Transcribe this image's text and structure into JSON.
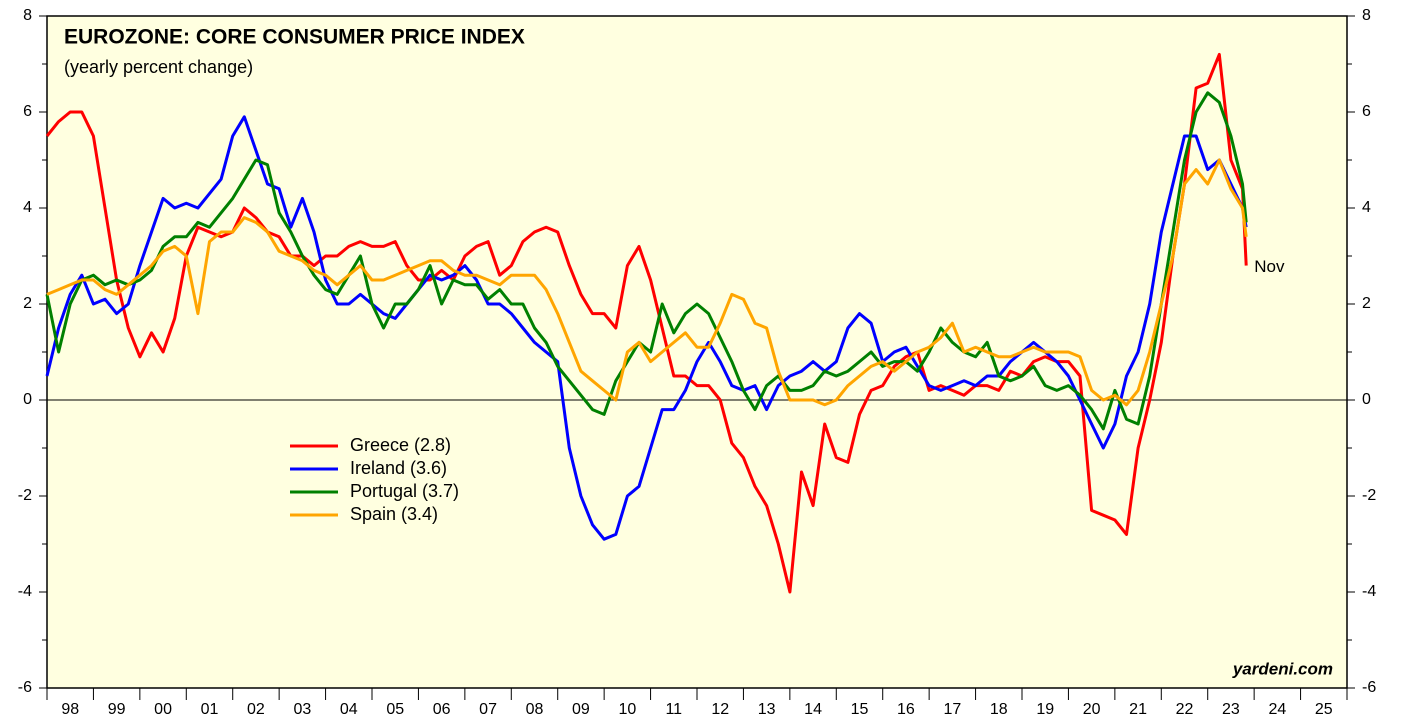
{
  "chart_data": {
    "type": "line",
    "title": "EUROZONE: CORE CONSUMER PRICE INDEX",
    "subtitle": "(yearly percent change)",
    "source": "yardeni.com",
    "annotation": {
      "text": "Nov",
      "color": "#ff0000"
    },
    "xlim": [
      1998,
      2026
    ],
    "xticks": [
      1998,
      1999,
      2000,
      2001,
      2002,
      2003,
      2004,
      2005,
      2006,
      2007,
      2008,
      2009,
      2010,
      2011,
      2012,
      2013,
      2014,
      2015,
      2016,
      2017,
      2018,
      2019,
      2020,
      2021,
      2022,
      2023,
      2024,
      2025,
      2026
    ],
    "xtick_labels": [
      {
        "value": 1998.5,
        "label": "98"
      },
      {
        "value": 1999.5,
        "label": "99"
      },
      {
        "value": 2000.5,
        "label": "00"
      },
      {
        "value": 2001.5,
        "label": "01"
      },
      {
        "value": 2002.5,
        "label": "02"
      },
      {
        "value": 2003.5,
        "label": "03"
      },
      {
        "value": 2004.5,
        "label": "04"
      },
      {
        "value": 2005.5,
        "label": "05"
      },
      {
        "value": 2006.5,
        "label": "06"
      },
      {
        "value": 2007.5,
        "label": "07"
      },
      {
        "value": 2008.5,
        "label": "08"
      },
      {
        "value": 2009.5,
        "label": "09"
      },
      {
        "value": 2010.5,
        "label": "10"
      },
      {
        "value": 2011.5,
        "label": "11"
      },
      {
        "value": 2012.5,
        "label": "12"
      },
      {
        "value": 2013.5,
        "label": "13"
      },
      {
        "value": 2014.5,
        "label": "14"
      },
      {
        "value": 2015.5,
        "label": "15"
      },
      {
        "value": 2016.5,
        "label": "16"
      },
      {
        "value": 2017.5,
        "label": "17"
      },
      {
        "value": 2018.5,
        "label": "18"
      },
      {
        "value": 2019.5,
        "label": "19"
      },
      {
        "value": 2020.5,
        "label": "20"
      },
      {
        "value": 2021.5,
        "label": "21"
      },
      {
        "value": 2022.5,
        "label": "22"
      },
      {
        "value": 2023.5,
        "label": "23"
      },
      {
        "value": 2024.5,
        "label": "24"
      },
      {
        "value": 2025.5,
        "label": "25"
      }
    ],
    "ylim": [
      -6,
      8
    ],
    "yticks": [
      -6,
      -4,
      -2,
      0,
      2,
      4,
      6,
      8
    ],
    "yticks_minor": [
      -5,
      -3,
      -1,
      1,
      3,
      5,
      7
    ],
    "y2lim": [
      -6,
      8
    ],
    "y2ticks": [
      -6,
      -4,
      -2,
      0,
      2,
      4,
      6,
      8
    ],
    "zero_line": true,
    "legend_position": "lower-left",
    "x": [
      1998,
      1998.25,
      1998.5,
      1998.75,
      1999,
      1999.25,
      1999.5,
      1999.75,
      2000,
      2000.25,
      2000.5,
      2000.75,
      2001,
      2001.25,
      2001.5,
      2001.75,
      2002,
      2002.25,
      2002.5,
      2002.75,
      2003,
      2003.25,
      2003.5,
      2003.75,
      2004,
      2004.25,
      2004.5,
      2004.75,
      2005,
      2005.25,
      2005.5,
      2005.75,
      2006,
      2006.25,
      2006.5,
      2006.75,
      2007,
      2007.25,
      2007.5,
      2007.75,
      2008,
      2008.25,
      2008.5,
      2008.75,
      2009,
      2009.25,
      2009.5,
      2009.75,
      2010,
      2010.25,
      2010.5,
      2010.75,
      2011,
      2011.25,
      2011.5,
      2011.75,
      2012,
      2012.25,
      2012.5,
      2012.75,
      2013,
      2013.25,
      2013.5,
      2013.75,
      2014,
      2014.25,
      2014.5,
      2014.75,
      2015,
      2015.25,
      2015.5,
      2015.75,
      2016,
      2016.25,
      2016.5,
      2016.75,
      2017,
      2017.25,
      2017.5,
      2017.75,
      2018,
      2018.25,
      2018.5,
      2018.75,
      2019,
      2019.25,
      2019.5,
      2019.75,
      2020,
      2020.25,
      2020.5,
      2020.75,
      2021,
      2021.25,
      2021.5,
      2021.75,
      2022,
      2022.25,
      2022.5,
      2022.75,
      2023,
      2023.25,
      2023.5,
      2023.75,
      2023.83
    ],
    "series": [
      {
        "name": "Greece (2.8)",
        "color": "#ff0000",
        "values": [
          5.5,
          5.8,
          6.0,
          6.0,
          5.5,
          4.0,
          2.5,
          1.5,
          0.9,
          1.4,
          1.0,
          1.7,
          3.0,
          3.6,
          3.5,
          3.4,
          3.5,
          4.0,
          3.8,
          3.5,
          3.4,
          3.0,
          3.0,
          2.8,
          3.0,
          3.0,
          3.2,
          3.3,
          3.2,
          3.2,
          3.3,
          2.8,
          2.5,
          2.5,
          2.7,
          2.5,
          3.0,
          3.2,
          3.3,
          2.6,
          2.8,
          3.3,
          3.5,
          3.6,
          3.5,
          2.8,
          2.2,
          1.8,
          1.8,
          1.5,
          2.8,
          3.2,
          2.5,
          1.5,
          0.5,
          0.5,
          0.3,
          0.3,
          0.0,
          -0.9,
          -1.2,
          -1.8,
          -2.2,
          -3.0,
          -4.0,
          -1.5,
          -2.2,
          -0.5,
          -1.2,
          -1.3,
          -0.3,
          0.2,
          0.3,
          0.7,
          0.9,
          1.0,
          0.2,
          0.3,
          0.2,
          0.1,
          0.3,
          0.3,
          0.2,
          0.6,
          0.5,
          0.8,
          0.9,
          0.8,
          0.8,
          0.5,
          -2.3,
          -2.4,
          -2.5,
          -2.8,
          -1.0,
          0.0,
          1.2,
          3.0,
          4.5,
          6.5,
          6.6,
          7.2,
          5.0,
          4.4,
          2.8
        ]
      },
      {
        "name": "Ireland (3.6)",
        "color": "#0000ff",
        "values": [
          0.5,
          1.5,
          2.2,
          2.6,
          2.0,
          2.1,
          1.8,
          2.0,
          2.8,
          3.5,
          4.2,
          4.0,
          4.1,
          4.0,
          4.3,
          4.6,
          5.5,
          5.9,
          5.2,
          4.5,
          4.4,
          3.6,
          4.2,
          3.5,
          2.5,
          2.0,
          2.0,
          2.2,
          2.0,
          1.8,
          1.7,
          2.0,
          2.3,
          2.6,
          2.5,
          2.6,
          2.8,
          2.5,
          2.0,
          2.0,
          1.8,
          1.5,
          1.2,
          1.0,
          0.8,
          -1.0,
          -2.0,
          -2.6,
          -2.9,
          -2.8,
          -2.0,
          -1.8,
          -1.0,
          -0.2,
          -0.2,
          0.2,
          0.8,
          1.2,
          0.8,
          0.3,
          0.2,
          0.3,
          -0.2,
          0.3,
          0.5,
          0.6,
          0.8,
          0.6,
          0.8,
          1.5,
          1.8,
          1.6,
          0.8,
          1.0,
          1.1,
          0.7,
          0.3,
          0.2,
          0.3,
          0.4,
          0.3,
          0.5,
          0.5,
          0.8,
          1.0,
          1.2,
          1.0,
          0.8,
          0.5,
          0.0,
          -0.5,
          -1.0,
          -0.5,
          0.5,
          1.0,
          2.0,
          3.5,
          4.5,
          5.5,
          5.5,
          4.8,
          5.0,
          4.5,
          4.0,
          3.6
        ]
      },
      {
        "name": "Portugal (3.7)",
        "color": "#008000",
        "values": [
          2.2,
          1.0,
          2.0,
          2.5,
          2.6,
          2.4,
          2.5,
          2.4,
          2.5,
          2.7,
          3.2,
          3.4,
          3.4,
          3.7,
          3.6,
          3.9,
          4.2,
          4.6,
          5.0,
          4.9,
          3.9,
          3.5,
          3.0,
          2.6,
          2.3,
          2.2,
          2.6,
          3.0,
          2.0,
          1.5,
          2.0,
          2.0,
          2.3,
          2.8,
          2.0,
          2.5,
          2.4,
          2.4,
          2.1,
          2.3,
          2.0,
          2.0,
          1.5,
          1.2,
          0.7,
          0.4,
          0.1,
          -0.2,
          -0.3,
          0.4,
          0.8,
          1.2,
          1.0,
          2.0,
          1.4,
          1.8,
          2.0,
          1.8,
          1.3,
          0.8,
          0.2,
          -0.2,
          0.3,
          0.5,
          0.2,
          0.2,
          0.3,
          0.6,
          0.5,
          0.6,
          0.8,
          1.0,
          0.7,
          0.8,
          0.8,
          0.6,
          1.0,
          1.5,
          1.2,
          1.0,
          0.9,
          1.2,
          0.5,
          0.4,
          0.5,
          0.7,
          0.3,
          0.2,
          0.3,
          0.1,
          -0.2,
          -0.6,
          0.2,
          -0.4,
          -0.5,
          0.5,
          2.0,
          3.5,
          5.0,
          6.0,
          6.4,
          6.2,
          5.5,
          4.5,
          3.7
        ]
      },
      {
        "name": "Spain (3.4)",
        "color": "#ffa500",
        "values": [
          2.2,
          2.3,
          2.4,
          2.5,
          2.5,
          2.3,
          2.2,
          2.4,
          2.6,
          2.8,
          3.1,
          3.2,
          3.0,
          1.8,
          3.3,
          3.5,
          3.5,
          3.8,
          3.7,
          3.5,
          3.1,
          3.0,
          2.9,
          2.7,
          2.6,
          2.4,
          2.6,
          2.8,
          2.5,
          2.5,
          2.6,
          2.7,
          2.8,
          2.9,
          2.9,
          2.7,
          2.6,
          2.6,
          2.5,
          2.4,
          2.6,
          2.6,
          2.6,
          2.3,
          1.8,
          1.2,
          0.6,
          0.4,
          0.2,
          0.0,
          1.0,
          1.2,
          0.8,
          1.0,
          1.2,
          1.4,
          1.1,
          1.1,
          1.6,
          2.2,
          2.1,
          1.6,
          1.5,
          0.6,
          0.0,
          0.0,
          0.0,
          -0.1,
          0.0,
          0.3,
          0.5,
          0.7,
          0.8,
          0.6,
          0.8,
          1.0,
          1.1,
          1.3,
          1.6,
          1.0,
          1.1,
          1.0,
          0.9,
          0.9,
          1.0,
          1.1,
          1.0,
          1.0,
          1.0,
          0.9,
          0.2,
          0.0,
          0.1,
          -0.1,
          0.2,
          1.0,
          2.0,
          3.0,
          4.5,
          4.8,
          4.5,
          5.0,
          4.4,
          4.0,
          3.4
        ]
      }
    ]
  }
}
